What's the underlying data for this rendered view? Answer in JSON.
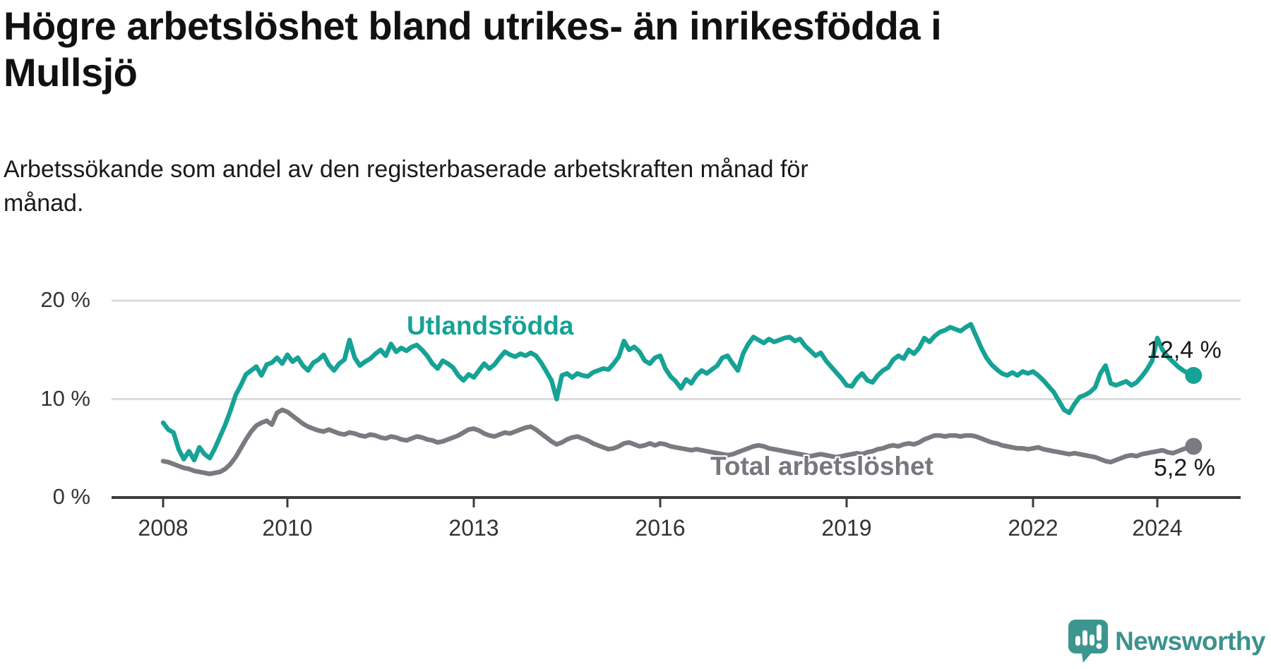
{
  "header": {
    "title": "Högre arbetslöshet bland utrikes- än inrikesfödda i\nMullsjö",
    "subtitle": "Arbetssökande som andel av den registerbaserade arbetskraften månad för\nmånad."
  },
  "chart_data": {
    "type": "line",
    "title": "Högre arbetslöshet bland utrikes- än inrikesfödda i Mullsjö",
    "subtitle": "Arbetssökande som andel av den registerbaserade arbetskraften månad för månad.",
    "frequency": "monthly",
    "x_start": {
      "year": 2008,
      "month": 1
    },
    "x_end": {
      "year": 2024,
      "month": 8
    },
    "ylim": [
      0,
      21
    ],
    "grid": "horizontal",
    "legend_position": "inline-labels",
    "y_ticks": [
      {
        "value": 0,
        "label": "0 %"
      },
      {
        "value": 10,
        "label": "10 %"
      },
      {
        "value": 20,
        "label": "20 %"
      }
    ],
    "x_ticks": [
      {
        "year": 2008,
        "label": "2008"
      },
      {
        "year": 2010,
        "label": "2010"
      },
      {
        "year": 2013,
        "label": "2013"
      },
      {
        "year": 2016,
        "label": "2016"
      },
      {
        "year": 2019,
        "label": "2019"
      },
      {
        "year": 2022,
        "label": "2022"
      },
      {
        "year": 2024,
        "label": "2024"
      }
    ],
    "series": [
      {
        "name": "Utlandsfödda",
        "color": "#16a296",
        "end_label": "12,4 %",
        "end_value": 12.4,
        "values": [
          7.6,
          6.9,
          6.6,
          4.9,
          3.9,
          4.7,
          3.8,
          5.1,
          4.4,
          4.0,
          5.0,
          6.2,
          7.4,
          8.8,
          10.4,
          11.4,
          12.5,
          12.9,
          13.3,
          12.4,
          13.5,
          13.7,
          14.2,
          13.6,
          14.5,
          13.8,
          14.2,
          13.4,
          12.9,
          13.7,
          14.0,
          14.5,
          13.5,
          12.9,
          13.6,
          14.0,
          16.0,
          14.2,
          13.4,
          13.8,
          14.1,
          14.6,
          15.0,
          14.4,
          15.6,
          14.8,
          15.2,
          14.9,
          15.3,
          15.5,
          15.0,
          14.4,
          13.6,
          13.1,
          13.9,
          13.6,
          13.2,
          12.4,
          11.9,
          12.5,
          12.2,
          12.9,
          13.6,
          13.1,
          13.5,
          14.2,
          14.8,
          14.5,
          14.3,
          14.6,
          14.4,
          14.7,
          14.4,
          13.7,
          12.8,
          11.9,
          10.0,
          12.4,
          12.6,
          12.2,
          12.6,
          12.4,
          12.3,
          12.7,
          12.9,
          13.1,
          13.0,
          13.6,
          14.3,
          15.9,
          15.0,
          15.3,
          14.8,
          13.9,
          13.6,
          14.2,
          14.4,
          13.1,
          12.3,
          11.8,
          11.1,
          12.0,
          11.6,
          12.4,
          12.9,
          12.6,
          13.0,
          13.4,
          14.2,
          14.4,
          13.6,
          12.9,
          14.6,
          15.6,
          16.3,
          16.0,
          15.7,
          16.1,
          15.8,
          16.0,
          16.2,
          16.3,
          15.9,
          16.1,
          15.4,
          14.9,
          14.4,
          14.7,
          13.9,
          13.3,
          12.7,
          12.1,
          11.4,
          11.3,
          12.1,
          12.6,
          11.9,
          11.7,
          12.4,
          12.9,
          13.2,
          14.0,
          14.4,
          14.1,
          15.0,
          14.6,
          15.2,
          16.2,
          15.8,
          16.4,
          16.8,
          17.0,
          17.3,
          17.1,
          16.9,
          17.3,
          17.6,
          16.4,
          15.2,
          14.2,
          13.5,
          13.0,
          12.6,
          12.4,
          12.7,
          12.4,
          12.8,
          12.6,
          12.8,
          12.4,
          11.9,
          11.3,
          10.7,
          9.8,
          8.9,
          8.6,
          9.5,
          10.2,
          10.4,
          10.7,
          11.2,
          12.6,
          13.4,
          11.6,
          11.4,
          11.6,
          11.8,
          11.4,
          11.7,
          12.3,
          13.0,
          13.9,
          16.2,
          15.0,
          14.3,
          13.8,
          13.3,
          12.9,
          12.6,
          12.4
        ]
      },
      {
        "name": "Total arbetslöshet",
        "color": "#7a7a80",
        "end_label": "5,2 %",
        "end_value": 5.2,
        "values": [
          3.7,
          3.6,
          3.4,
          3.2,
          3.0,
          2.9,
          2.7,
          2.6,
          2.5,
          2.4,
          2.5,
          2.6,
          2.9,
          3.4,
          4.1,
          5.0,
          5.9,
          6.7,
          7.3,
          7.6,
          7.8,
          7.4,
          8.6,
          8.9,
          8.7,
          8.3,
          7.9,
          7.5,
          7.2,
          7.0,
          6.8,
          6.7,
          6.9,
          6.7,
          6.5,
          6.4,
          6.6,
          6.5,
          6.3,
          6.2,
          6.4,
          6.3,
          6.1,
          6.0,
          6.2,
          6.1,
          5.9,
          5.8,
          6.0,
          6.2,
          6.1,
          5.9,
          5.8,
          5.6,
          5.7,
          5.9,
          6.1,
          6.3,
          6.6,
          6.9,
          7.0,
          6.8,
          6.5,
          6.3,
          6.2,
          6.4,
          6.6,
          6.5,
          6.7,
          6.9,
          7.1,
          7.2,
          6.9,
          6.5,
          6.1,
          5.7,
          5.4,
          5.6,
          5.9,
          6.1,
          6.2,
          6.0,
          5.8,
          5.5,
          5.3,
          5.1,
          4.9,
          5.0,
          5.2,
          5.5,
          5.6,
          5.4,
          5.2,
          5.3,
          5.5,
          5.3,
          5.5,
          5.4,
          5.2,
          5.1,
          5.0,
          4.9,
          4.8,
          4.9,
          4.8,
          4.7,
          4.6,
          4.5,
          4.4,
          4.3,
          4.4,
          4.6,
          4.8,
          5.0,
          5.2,
          5.3,
          5.2,
          5.0,
          4.9,
          4.8,
          4.7,
          4.6,
          4.5,
          4.4,
          4.3,
          4.2,
          4.3,
          4.4,
          4.3,
          4.2,
          4.1,
          4.2,
          4.3,
          4.4,
          4.5,
          4.4,
          4.6,
          4.7,
          4.9,
          5.0,
          5.2,
          5.3,
          5.2,
          5.4,
          5.5,
          5.4,
          5.6,
          5.9,
          6.1,
          6.3,
          6.3,
          6.2,
          6.3,
          6.3,
          6.2,
          6.3,
          6.3,
          6.2,
          6.0,
          5.8,
          5.6,
          5.5,
          5.3,
          5.2,
          5.1,
          5.0,
          5.0,
          4.9,
          5.0,
          5.1,
          4.9,
          4.8,
          4.7,
          4.6,
          4.5,
          4.4,
          4.5,
          4.4,
          4.3,
          4.2,
          4.1,
          3.9,
          3.7,
          3.6,
          3.8,
          4.0,
          4.2,
          4.3,
          4.2,
          4.4,
          4.5,
          4.6,
          4.7,
          4.8,
          4.6,
          4.5,
          4.7,
          4.9,
          5.1,
          5.2
        ]
      }
    ],
    "colors": {
      "accent_teal": "#16a296",
      "line_gray": "#7a7a80",
      "grid": "#dcdcdc",
      "axis": "#3c3c3c",
      "text": "#333333"
    }
  },
  "footer": {
    "brand": "Newsworthy"
  }
}
